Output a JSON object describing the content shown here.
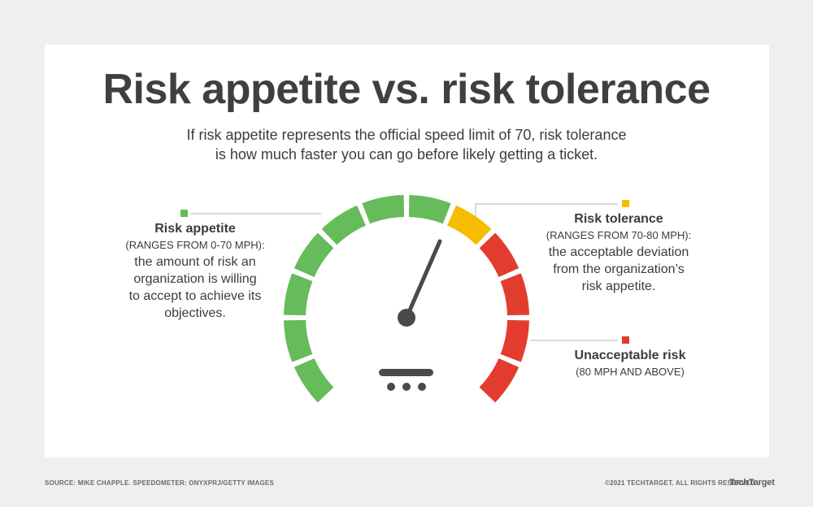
{
  "title": "Risk appetite vs. risk tolerance",
  "subtitle": {
    "line1": "If risk appetite represents the official speed limit of 70, risk tolerance",
    "line2": "is how much faster you can go before likely getting a ticket."
  },
  "appetite": {
    "heading": "Risk appetite",
    "range": "(RANGES FROM 0-70 MPH):",
    "body": [
      "the amount of risk an",
      "organization is willing",
      "to accept to achieve its",
      "objectives."
    ],
    "color": "#66bb5a"
  },
  "tolerance": {
    "heading": "Risk tolerance",
    "range": "(RANGES FROM 70-80 MPH):",
    "body": [
      "the acceptable deviation",
      "from the organization’s",
      "risk appetite."
    ],
    "color": "#f5bc00"
  },
  "unacceptable": {
    "heading": "Unacceptable risk",
    "range": "(80 MPH AND ABOVE)",
    "color": "#e23c2f"
  },
  "gauge": {
    "needle_value_mph": 72,
    "segments": [
      "green",
      "green",
      "green",
      "green",
      "green",
      "green",
      "green",
      "yellow",
      "red",
      "red",
      "red",
      "red"
    ],
    "colors": {
      "green": "#66bb5a",
      "yellow": "#f5bc00",
      "red": "#e23c2f",
      "needle": "#4a4a4a"
    }
  },
  "footer": {
    "source": "SOURCE: MIKE CHAPPLE. SPEEDOMETER: ONYXPRJ/GETTY IMAGES",
    "copyright": "©2021 TECHTARGET. ALL RIGHTS RESERVED",
    "brand": "TechTarget"
  }
}
